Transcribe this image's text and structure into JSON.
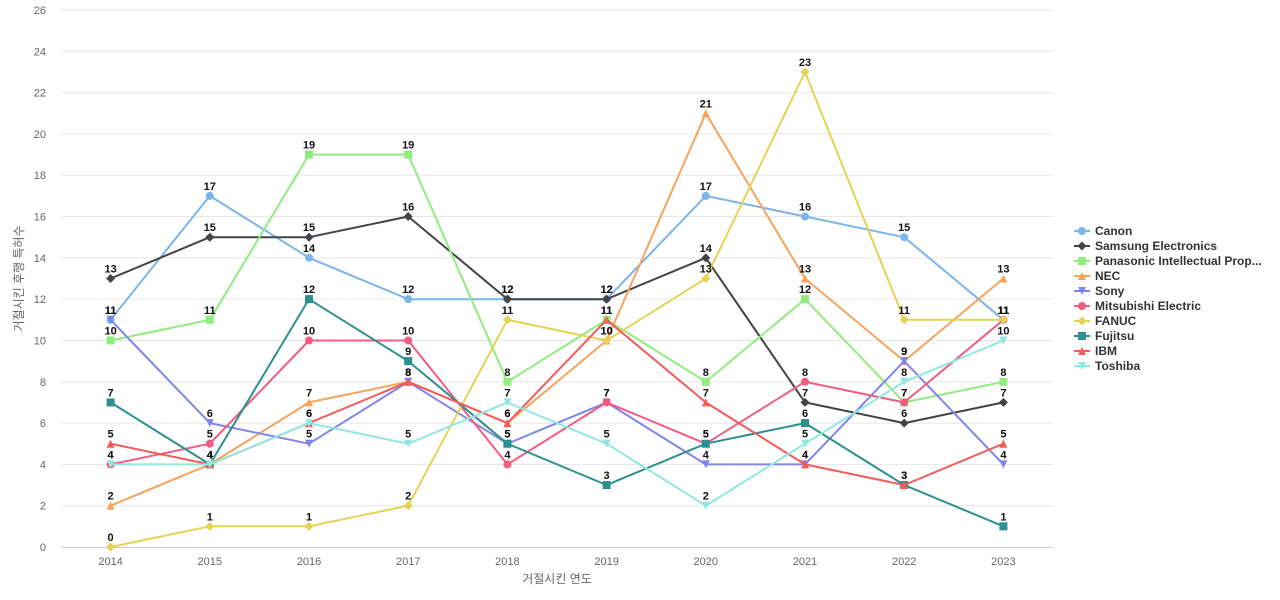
{
  "chart_data": {
    "type": "line",
    "title": "",
    "xlabel": "거절시킨 연도",
    "ylabel": "거절시킨 후행 특허수",
    "ylim": [
      0,
      26
    ],
    "y_ticks": [
      0,
      2,
      4,
      6,
      8,
      10,
      12,
      14,
      16,
      18,
      20,
      22,
      24,
      26
    ],
    "x": [
      "2014",
      "2015",
      "2016",
      "2017",
      "2018",
      "2019",
      "2020",
      "2021",
      "2022",
      "2023"
    ],
    "grid": true,
    "legend_position": "right",
    "series": [
      {
        "name": "Canon",
        "color": "#7cb5ec",
        "marker": "circle",
        "values": [
          11,
          17,
          14,
          12,
          12,
          12,
          17,
          16,
          15,
          11
        ]
      },
      {
        "name": "Samsung Electronics",
        "color": "#434348",
        "marker": "diamond",
        "values": [
          13,
          15,
          15,
          16,
          12,
          12,
          14,
          7,
          6,
          7
        ]
      },
      {
        "name": "Panasonic Intellectual Prop...",
        "color": "#90ed7d",
        "marker": "square",
        "values": [
          10,
          11,
          19,
          19,
          8,
          11,
          8,
          12,
          7,
          8
        ]
      },
      {
        "name": "NEC",
        "color": "#f7a35c",
        "marker": "triangle",
        "values": [
          2,
          4,
          7,
          8,
          6,
          10,
          21,
          13,
          9,
          13
        ]
      },
      {
        "name": "Sony",
        "color": "#8085e9",
        "marker": "triangle-down",
        "values": [
          11,
          6,
          5,
          8,
          5,
          7,
          4,
          4,
          9,
          4
        ]
      },
      {
        "name": "Mitsubishi Electric",
        "color": "#f15c80",
        "marker": "circle",
        "values": [
          4,
          5,
          10,
          10,
          4,
          7,
          5,
          8,
          7,
          11
        ]
      },
      {
        "name": "FANUC",
        "color": "#e4d354",
        "marker": "diamond",
        "values": [
          0,
          1,
          1,
          2,
          11,
          10,
          13,
          23,
          11,
          11
        ]
      },
      {
        "name": "Fujitsu",
        "color": "#2b908f",
        "marker": "square",
        "values": [
          7,
          4,
          12,
          9,
          5,
          3,
          5,
          6,
          3,
          1
        ]
      },
      {
        "name": "IBM",
        "color": "#f45b5b",
        "marker": "triangle",
        "values": [
          5,
          4,
          6,
          8,
          6,
          11,
          7,
          4,
          3,
          5
        ]
      },
      {
        "name": "Toshiba",
        "color": "#91e8e1",
        "marker": "triangle-down",
        "values": [
          4,
          4,
          6,
          5,
          7,
          5,
          2,
          5,
          8,
          10
        ]
      }
    ]
  }
}
